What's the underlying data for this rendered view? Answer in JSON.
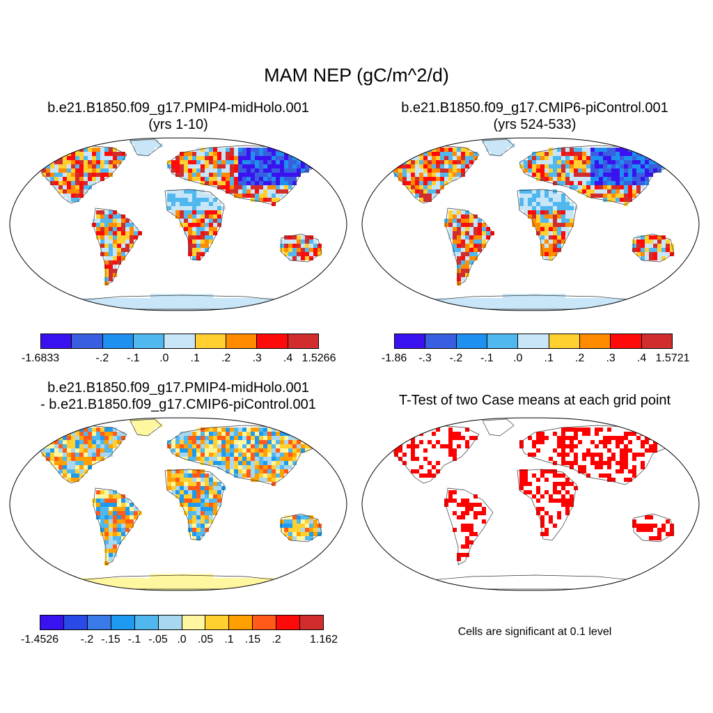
{
  "title": "MAM NEP (gC/m^2/d)",
  "panels": [
    {
      "title_line1": "b.e21.B1850.f09_g17.PMIP4-midHolo.001",
      "title_line2": "(yrs 1-10)",
      "colorbar": {
        "colors": [
          "#3a12f0",
          "#3a5ee0",
          "#1e90f0",
          "#50b8ee",
          "#c8e6f8",
          "#ffd030",
          "#ff8c00",
          "#ff0a0a",
          "#d22d2d"
        ],
        "labels": [
          "-1.6833",
          "-.2",
          "-.1",
          ".0",
          ".1",
          ".2",
          ".3",
          ".4",
          "1.5266"
        ],
        "label_edges": [
          0,
          2,
          3,
          4,
          5,
          6,
          7,
          8,
          9
        ]
      }
    },
    {
      "title_line1": "b.e21.B1850.f09_g17.CMIP6-piControl.001",
      "title_line2": "(yrs 524-533)",
      "colorbar": {
        "colors": [
          "#3a12f0",
          "#3a5ee0",
          "#1e90f0",
          "#50b8ee",
          "#c8e6f8",
          "#ffd030",
          "#ff8c00",
          "#ff0a0a",
          "#d22d2d"
        ],
        "labels": [
          "-1.86",
          "-.3",
          "-.2",
          "-.1",
          ".0",
          ".1",
          ".2",
          ".3",
          ".4",
          "1.5721"
        ],
        "label_edges": [
          0,
          1,
          2,
          3,
          4,
          5,
          6,
          7,
          8,
          9
        ]
      }
    },
    {
      "title_line1": "b.e21.B1850.f09_g17.PMIP4-midHolo.001",
      "title_line2": "- b.e21.B1850.f09_g17.CMIP6-piControl.001",
      "colorbar": {
        "colors": [
          "#3a12f0",
          "#2a4ae8",
          "#3a7ae8",
          "#1e9af0",
          "#50b8ee",
          "#a8d8f0",
          "#fff7a0",
          "#ffd030",
          "#ffa000",
          "#ff5a1a",
          "#ff0a0a",
          "#d22d2d"
        ],
        "labels": [
          "-1.4526",
          "-.2",
          "-.15",
          "-.1",
          "-.05",
          ".0",
          ".05",
          ".1",
          ".15",
          ".2",
          "1.162"
        ],
        "label_edges": [
          0,
          2,
          3,
          4,
          5,
          6,
          7,
          8,
          9,
          10,
          12
        ]
      }
    },
    {
      "title_line1": "T-Test of two Case means at each grid point",
      "note": "Cells are significant at 0.1 level",
      "color": "#ff0000"
    }
  ]
}
